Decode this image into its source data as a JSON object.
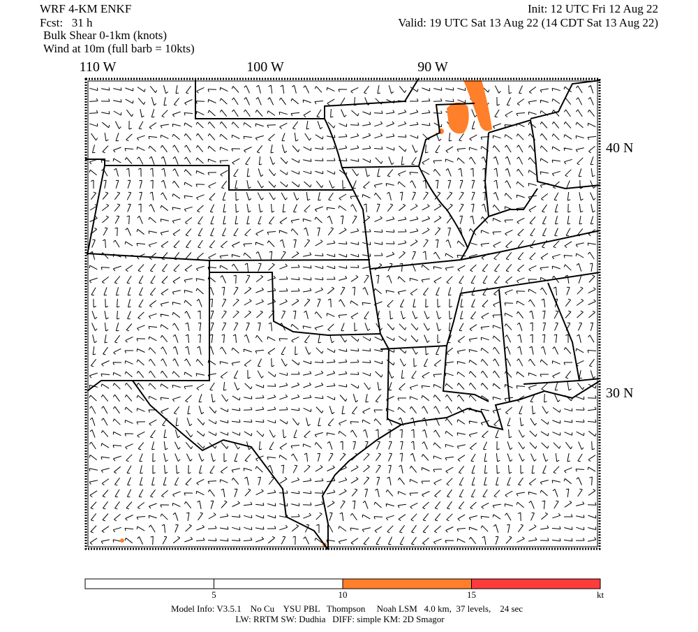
{
  "header": {
    "model": "WRF 4-KM ENKF",
    "forecast": "Fcst:   31 h",
    "field": "Bulk Shear 0-1km (knots)",
    "overlay": "Wind at 10m (full barb = 10kts)",
    "init": "Init: 12 UTC Fri 12 Aug 22",
    "valid": "Valid: 19 UTC Sat 13 Aug 22 (14 CDT Sat 13 Aug 22)"
  },
  "map": {
    "lon_labels": [
      "110 W",
      "100 W",
      "90 W"
    ],
    "lat_labels": [
      "40 N",
      "30 N"
    ]
  },
  "colorbar": {
    "range": [
      0,
      20
    ],
    "ticks": [
      5,
      10,
      15
    ],
    "unit": "kt",
    "colors": [
      "#ffffff",
      "#ffffff",
      "#ff7f2a",
      "#ff3b3b"
    ]
  },
  "footer": {
    "line1": "Model Info: V3.5.1    No Cu    YSU PBL   Thompson     Noah LSM   4.0 km,  37 levels,    24 sec",
    "line2": "LW: RRTM SW: Dudhia   DIFF: simple KM: 2D Smagor"
  }
}
